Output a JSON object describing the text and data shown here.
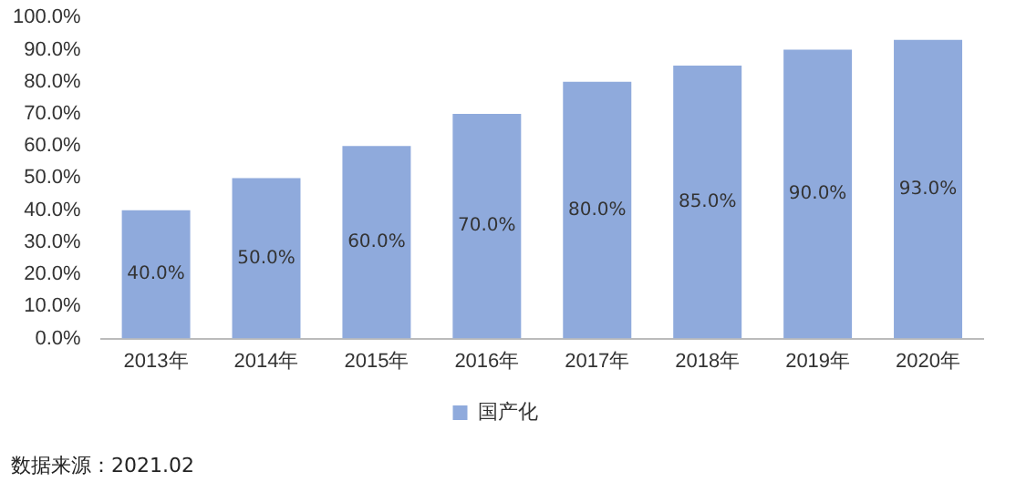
{
  "chart_data": {
    "type": "bar",
    "categories": [
      "2013年",
      "2014年",
      "2015年",
      "2016年",
      "2017年",
      "2018年",
      "2019年",
      "2020年"
    ],
    "series": [
      {
        "name": "国产化",
        "color": "#8faadc",
        "values": [
          40,
          50,
          60,
          70,
          80,
          85,
          90,
          93
        ],
        "value_labels": [
          "40.0%",
          "50.0%",
          "60.0%",
          "70.0%",
          "80.0%",
          "85.0%",
          "90.0%",
          "93.0%"
        ]
      }
    ],
    "ylim": [
      0,
      100
    ],
    "yticks": [
      {
        "value": 0,
        "label": "0.0%"
      },
      {
        "value": 10,
        "label": "10.0%"
      },
      {
        "value": 20,
        "label": "20.0%"
      },
      {
        "value": 30,
        "label": "30.0%"
      },
      {
        "value": 40,
        "label": "40.0%"
      },
      {
        "value": 50,
        "label": "50.0%"
      },
      {
        "value": 60,
        "label": "60.0%"
      },
      {
        "value": 70,
        "label": "70.0%"
      },
      {
        "value": 80,
        "label": "80.0%"
      },
      {
        "value": 90,
        "label": "90.0%"
      },
      {
        "value": 100,
        "label": "100.0%"
      }
    ],
    "grid": false,
    "legend": "bottom",
    "annotations": [
      "数据来源：2021.02"
    ]
  }
}
